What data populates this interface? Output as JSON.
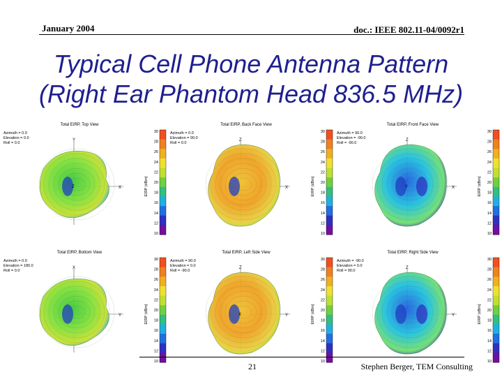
{
  "header": {
    "date": "January 2004",
    "doc": "doc.: IEEE 802.11-04/0092r1"
  },
  "title": {
    "line1": "Typical Cell Phone Antenna Pattern",
    "line2": "(Right Ear Phantom Head 836.5 MHz)"
  },
  "footer": {
    "page": "21",
    "author": "Stephen Berger, TEM Consulting"
  },
  "colorbar": {
    "label": "EIRP (dBm)",
    "ticks": [
      "30",
      "28",
      "26",
      "24",
      "22",
      "20",
      "18",
      "16",
      "14",
      "12",
      "10"
    ]
  },
  "panels": [
    {
      "title": "Total EIRP, Top View",
      "azimuth": "Azimuth = 0.0",
      "elevation": "Elevation = 0.0",
      "roll": "Roll = 0.0",
      "axes": [
        "Y",
        "X"
      ],
      "center": "Z",
      "palette": "green"
    },
    {
      "title": "Total EIRP, Back Face View",
      "azimuth": "Azimuth = 0.0",
      "elevation": "Elevation = 90.0",
      "roll": "Roll = 0.0",
      "axes": [
        "Z",
        "X"
      ],
      "center": "",
      "palette": "yellow"
    },
    {
      "title": "Total EIRP, Front Face View",
      "azimuth": "Azimuth = 90.0",
      "elevation": "Elevation = -90.0",
      "roll": "Roll = -90.0",
      "axes": [
        "Z",
        "X"
      ],
      "center": "Y",
      "palette": "blue"
    },
    {
      "title": "Total EIRP, Bottom View",
      "azimuth": "Azimuth = 0.0",
      "elevation": "Elevation = 180.0",
      "roll": "Roll = 0.0",
      "axes": [
        "X",
        "Y"
      ],
      "center": "",
      "palette": "green"
    },
    {
      "title": "Total EIRP, Left Side View",
      "azimuth": "Azimuth = 90.0",
      "elevation": "Elevation = 0.0",
      "roll": "Roll = -90.0",
      "axes": [
        "Z",
        "Y"
      ],
      "center": "X",
      "palette": "yellow"
    },
    {
      "title": "Total EIRP, Right Side View",
      "azimuth": "Azimuth = -90.0",
      "elevation": "Elevation = 0.0",
      "roll": "Roll = 90.0",
      "axes": [
        "Z",
        "Y"
      ],
      "center": "",
      "palette": "blue"
    }
  ],
  "colors": {
    "title": "#1f1f8f",
    "high": "#f0a020",
    "mid": "#9ae020",
    "low": "#2060e0",
    "min": "#7010a0"
  }
}
